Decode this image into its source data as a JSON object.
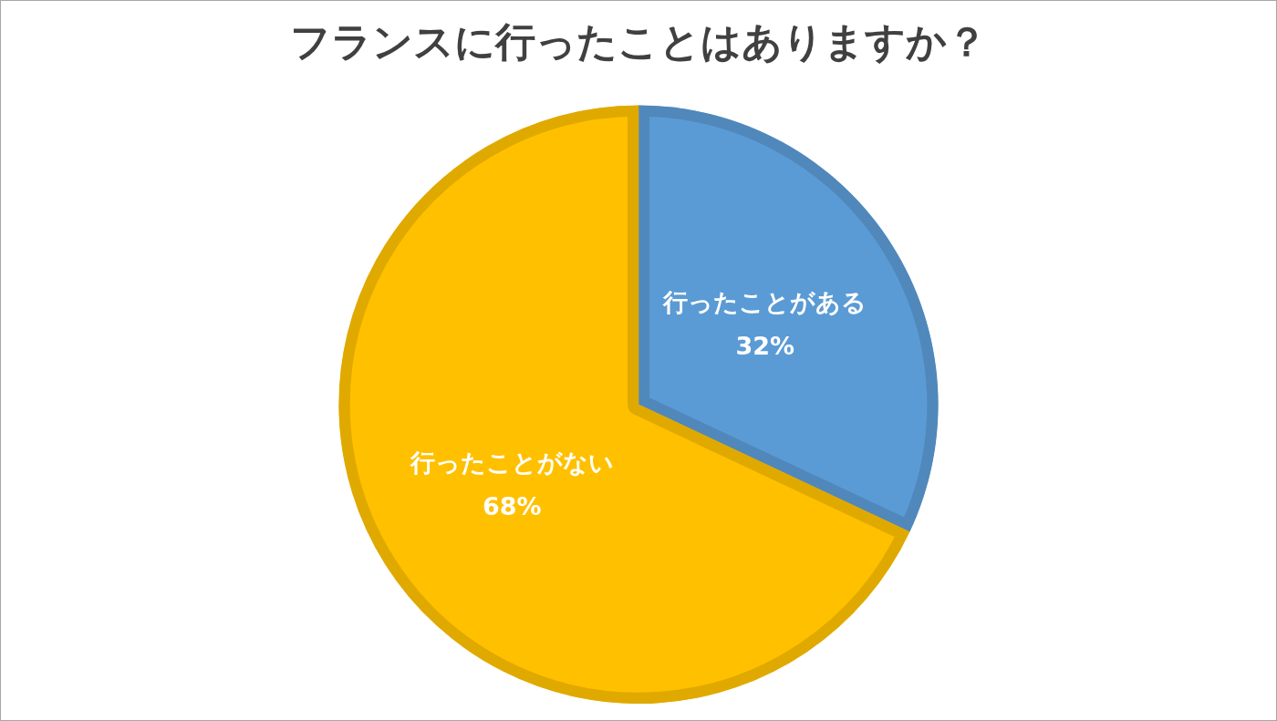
{
  "chart_data": {
    "type": "pie",
    "title": "フランスに行ったことはありますか？",
    "categories": [
      "行ったことがある",
      "行ったことがない"
    ],
    "values": [
      32,
      68
    ],
    "colors": [
      "#5b9bd5",
      "#ffc000"
    ],
    "value_labels": [
      "32%",
      "68%"
    ],
    "legend": false
  }
}
